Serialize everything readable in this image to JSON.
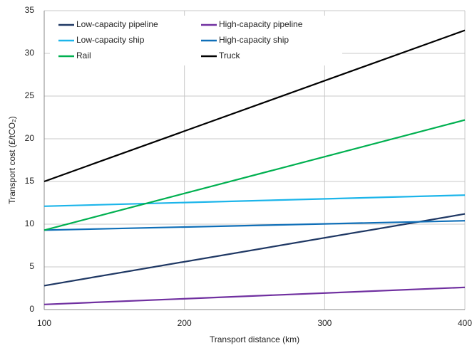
{
  "chart_data": {
    "type": "line",
    "x_label": "Transport distance (km)",
    "y_label": "Transport cost (£/tCO₂)",
    "x": [
      100,
      400
    ],
    "series": [
      {
        "name": "Low-capacity pipeline",
        "color": "#1f3864",
        "values": [
          2.8,
          11.2
        ]
      },
      {
        "name": "High-capacity pipeline",
        "color": "#7030a0",
        "values": [
          0.6,
          2.6
        ]
      },
      {
        "name": "Low-capacity ship",
        "color": "#1cb5ea",
        "values": [
          12.1,
          13.4
        ]
      },
      {
        "name": "High-capacity ship",
        "color": "#0f6fb8",
        "values": [
          9.3,
          10.4
        ]
      },
      {
        "name": "Rail",
        "color": "#00b050",
        "values": [
          9.3,
          22.2
        ]
      },
      {
        "name": "Truck",
        "color": "#000000",
        "values": [
          15.0,
          32.7
        ]
      }
    ],
    "xlim": [
      100,
      400
    ],
    "xticks": [
      100,
      200,
      300,
      400
    ],
    "ylim": [
      0,
      35
    ],
    "yticks": [
      0,
      5,
      10,
      15,
      20,
      25,
      30,
      35
    ],
    "grid": true,
    "legend": "upper-left"
  }
}
